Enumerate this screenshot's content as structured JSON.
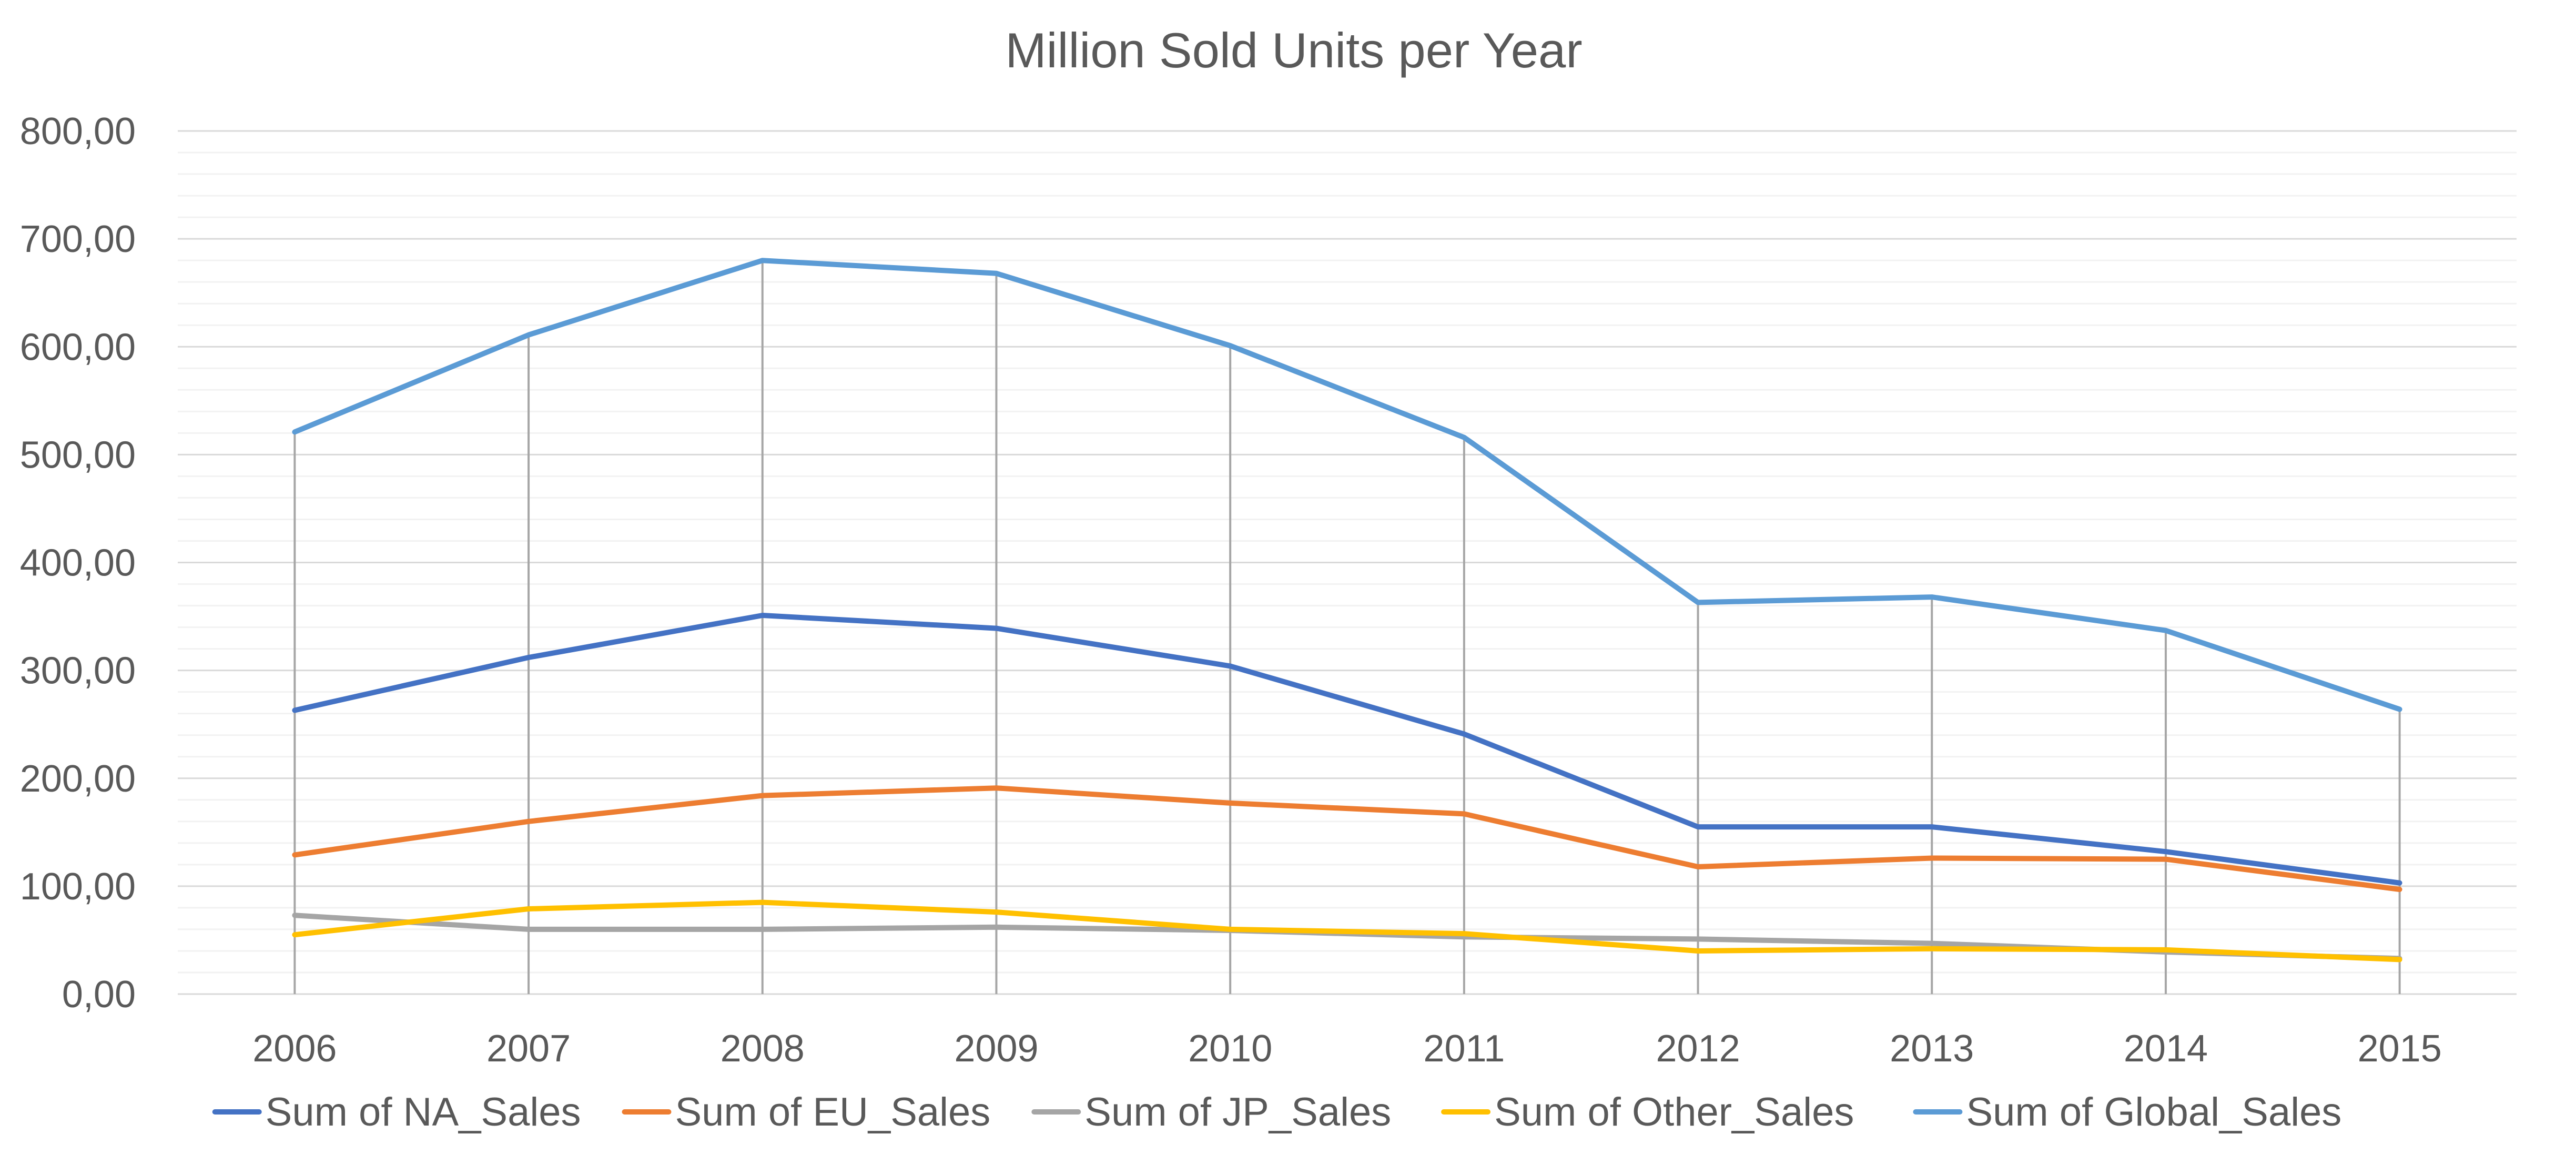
{
  "chart_data": {
    "type": "line",
    "title": "Million Sold Units per Year",
    "xlabel": "",
    "ylabel": "",
    "categories": [
      "2006",
      "2007",
      "2008",
      "2009",
      "2010",
      "2011",
      "2012",
      "2013",
      "2014",
      "2015"
    ],
    "ylim": [
      0,
      800
    ],
    "y_ticks": [
      0,
      100,
      200,
      300,
      400,
      500,
      600,
      700,
      800
    ],
    "y_tick_labels": [
      "0,00",
      "100,00",
      "200,00",
      "300,00",
      "400,00",
      "500,00",
      "600,00",
      "700,00",
      "800,00"
    ],
    "grid": true,
    "drop_lines": true,
    "legend_position": "bottom",
    "series": [
      {
        "name": "Sum of NA_Sales",
        "color": "#4472C4",
        "values": [
          263,
          312,
          351,
          339,
          304,
          241,
          155,
          155,
          132,
          103
        ]
      },
      {
        "name": "Sum of EU_Sales",
        "color": "#ED7D31",
        "values": [
          129,
          160,
          184,
          191,
          177,
          167,
          118,
          126,
          125,
          97
        ]
      },
      {
        "name": "Sum of JP_Sales",
        "color": "#A5A5A5",
        "values": [
          73,
          60,
          60,
          62,
          59,
          53,
          51,
          47,
          39,
          33
        ]
      },
      {
        "name": "Sum of Other_Sales",
        "color": "#FFC000",
        "values": [
          55,
          79,
          85,
          76,
          60,
          56,
          40,
          42,
          41,
          32
        ]
      },
      {
        "name": "Sum of Global_Sales",
        "color": "#5B9BD5",
        "values": [
          521,
          611,
          680,
          668,
          601,
          516,
          363,
          368,
          337,
          264
        ]
      }
    ]
  }
}
